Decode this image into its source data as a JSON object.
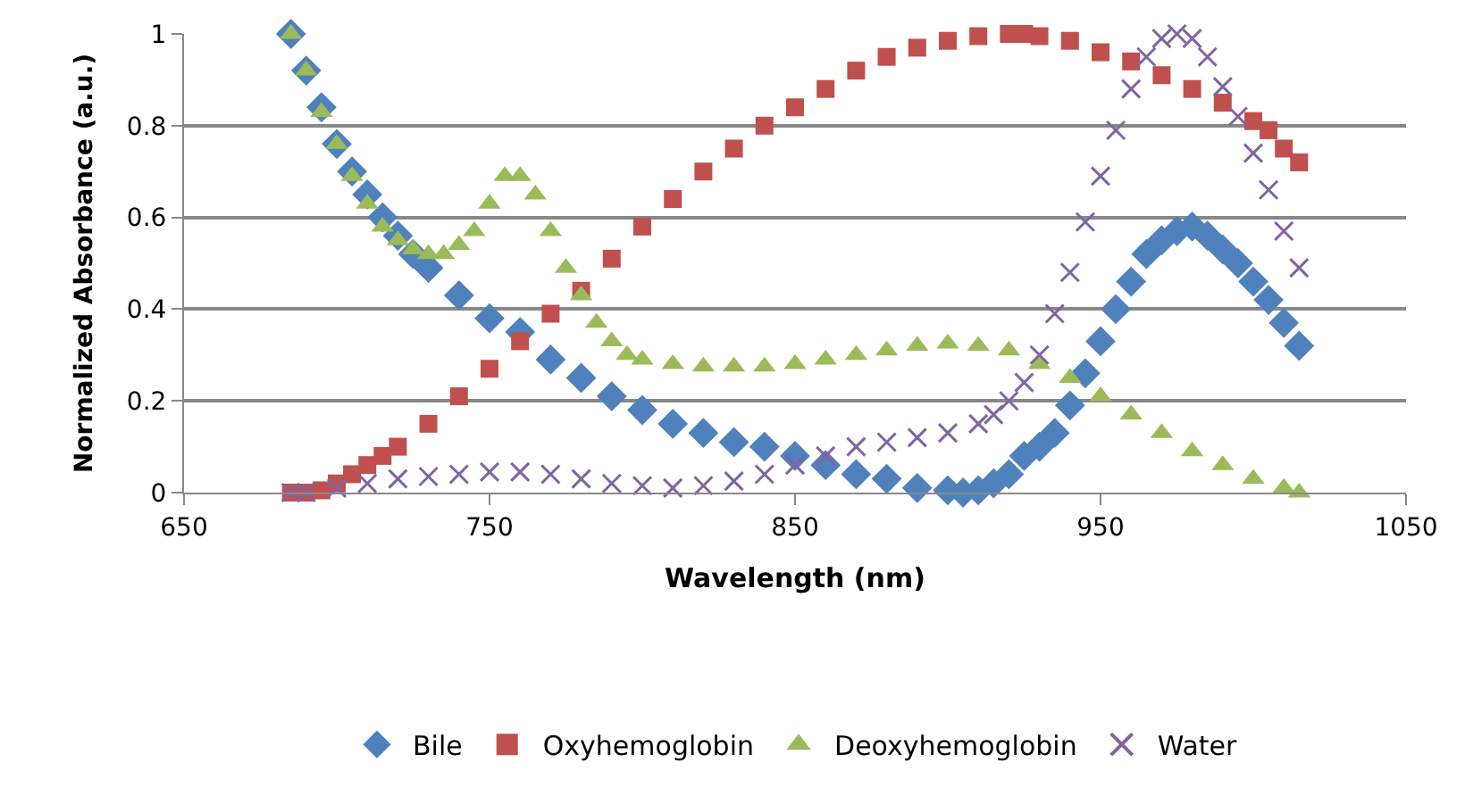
{
  "chart_data": {
    "type": "scatter",
    "xlabel": "Wavelength (nm)",
    "ylabel": "Normalized Absorbance (a.u.)",
    "xlim": [
      650,
      1050
    ],
    "xticks": [
      650,
      750,
      850,
      950,
      1050
    ],
    "ylim": [
      0,
      1
    ],
    "yticks": [
      0,
      0.2,
      0.4,
      0.6,
      0.8,
      1
    ],
    "grid": "y",
    "legend": "bottom",
    "series": [
      {
        "name": "Bile",
        "color": "#4f81bd",
        "marker": "diamond",
        "x": [
          685,
          690,
          695,
          700,
          705,
          710,
          715,
          720,
          725,
          730,
          740,
          750,
          760,
          770,
          780,
          790,
          800,
          810,
          820,
          830,
          840,
          850,
          860,
          870,
          880,
          890,
          900,
          905,
          910,
          915,
          920,
          925,
          930,
          935,
          940,
          945,
          950,
          955,
          960,
          965,
          970,
          975,
          980,
          985,
          990,
          995,
          1000,
          1005,
          1010,
          1015
        ],
        "values": [
          1.0,
          0.92,
          0.84,
          0.76,
          0.7,
          0.65,
          0.6,
          0.56,
          0.52,
          0.49,
          0.43,
          0.38,
          0.35,
          0.29,
          0.25,
          0.21,
          0.18,
          0.15,
          0.13,
          0.11,
          0.1,
          0.08,
          0.06,
          0.04,
          0.03,
          0.01,
          0.005,
          0.0,
          0.005,
          0.02,
          0.04,
          0.08,
          0.1,
          0.13,
          0.19,
          0.26,
          0.33,
          0.4,
          0.46,
          0.52,
          0.55,
          0.57,
          0.58,
          0.56,
          0.53,
          0.5,
          0.46,
          0.42,
          0.37,
          0.32
        ]
      },
      {
        "name": "Oxyhemoglobin",
        "color": "#c0504d",
        "marker": "square",
        "x": [
          685,
          690,
          695,
          700,
          705,
          710,
          715,
          720,
          730,
          740,
          750,
          760,
          770,
          780,
          790,
          800,
          810,
          820,
          830,
          840,
          850,
          860,
          870,
          880,
          890,
          900,
          910,
          920,
          925,
          930,
          940,
          950,
          960,
          970,
          980,
          990,
          1000,
          1005,
          1010,
          1015
        ],
        "values": [
          0.0,
          0.0,
          0.005,
          0.02,
          0.04,
          0.06,
          0.08,
          0.1,
          0.15,
          0.21,
          0.27,
          0.33,
          0.39,
          0.44,
          0.51,
          0.58,
          0.64,
          0.7,
          0.75,
          0.8,
          0.84,
          0.88,
          0.92,
          0.95,
          0.97,
          0.985,
          0.995,
          1.0,
          1.0,
          0.995,
          0.985,
          0.96,
          0.94,
          0.91,
          0.88,
          0.85,
          0.81,
          0.79,
          0.75,
          0.72
        ]
      },
      {
        "name": "Deoxyhemoglobin",
        "color": "#9bbb59",
        "marker": "triangle",
        "x": [
          685,
          690,
          695,
          700,
          705,
          710,
          715,
          720,
          725,
          730,
          735,
          740,
          745,
          750,
          755,
          760,
          765,
          770,
          775,
          780,
          785,
          790,
          795,
          800,
          810,
          820,
          830,
          840,
          850,
          860,
          870,
          880,
          890,
          900,
          910,
          920,
          930,
          940,
          950,
          960,
          970,
          980,
          990,
          1000,
          1010,
          1015
        ],
        "values": [
          1.0,
          0.92,
          0.83,
          0.76,
          0.69,
          0.63,
          0.58,
          0.55,
          0.53,
          0.52,
          0.52,
          0.54,
          0.57,
          0.63,
          0.69,
          0.69,
          0.65,
          0.57,
          0.49,
          0.43,
          0.37,
          0.33,
          0.3,
          0.29,
          0.28,
          0.275,
          0.275,
          0.275,
          0.28,
          0.29,
          0.3,
          0.31,
          0.32,
          0.325,
          0.32,
          0.31,
          0.28,
          0.25,
          0.21,
          0.17,
          0.13,
          0.09,
          0.06,
          0.03,
          0.01,
          0.0
        ]
      },
      {
        "name": "Water",
        "color": "#8064a2",
        "marker": "cross",
        "x": [
          685,
          690,
          700,
          710,
          720,
          730,
          740,
          750,
          760,
          770,
          780,
          790,
          800,
          810,
          820,
          830,
          840,
          850,
          860,
          870,
          880,
          890,
          900,
          910,
          915,
          920,
          925,
          930,
          935,
          940,
          945,
          950,
          955,
          960,
          965,
          970,
          975,
          980,
          985,
          990,
          995,
          1000,
          1005,
          1010,
          1015
        ],
        "values": [
          0.0,
          0.0,
          0.01,
          0.02,
          0.03,
          0.035,
          0.04,
          0.045,
          0.045,
          0.04,
          0.03,
          0.02,
          0.015,
          0.01,
          0.015,
          0.025,
          0.04,
          0.06,
          0.08,
          0.1,
          0.11,
          0.12,
          0.13,
          0.15,
          0.17,
          0.2,
          0.24,
          0.3,
          0.39,
          0.48,
          0.59,
          0.69,
          0.79,
          0.88,
          0.95,
          0.99,
          1.0,
          0.99,
          0.95,
          0.885,
          0.82,
          0.74,
          0.66,
          0.57,
          0.49
        ]
      }
    ]
  }
}
